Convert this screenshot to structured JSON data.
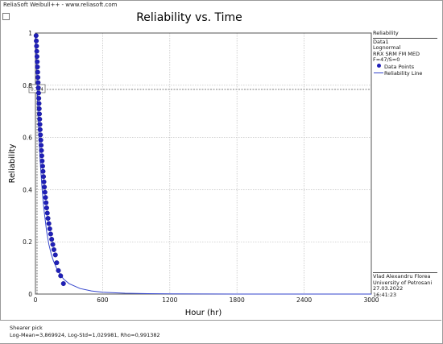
{
  "app": {
    "title": "ReliaSoft Weibull++ - www.reliasoft.com"
  },
  "legend": {
    "header": "Reliability",
    "lines": [
      "Data1",
      "Lognormal",
      "RRX SRM FM MED",
      "F=47/S=0"
    ],
    "items": [
      {
        "label": "Data Points",
        "symbol": "dot"
      },
      {
        "label": "Reliability Line",
        "symbol": "line"
      }
    ]
  },
  "author": {
    "name": "Vlad Alexandru Florea",
    "org": "University of Petrosani",
    "date": "27.03.2022",
    "time": "16:41:23"
  },
  "footer": {
    "title": "Shearer pick",
    "params": "Log-Mean=3,869924, Log-Std=1,029981, Rho=0,991382"
  },
  "colors": {
    "points": "#1f1fb8",
    "line": "#3344cc",
    "grid": "#bdbdbd",
    "ref": "#555555"
  },
  "chart_data": {
    "type": "scatter",
    "title": "Reliability vs. Time",
    "xlabel": "Hour (hr)",
    "ylabel": "Reliability",
    "xlim": [
      0,
      3000
    ],
    "ylim": [
      0,
      1
    ],
    "x_ticks": [
      "0",
      "600",
      "1200",
      "1800",
      "2400",
      "3000"
    ],
    "y_ticks": [
      "0",
      "0.2",
      "0.4",
      "0.6",
      "0.8",
      "1"
    ],
    "grid": true,
    "reference": {
      "y": 0.784,
      "label": "0.784"
    },
    "series": [
      {
        "name": "Data Points",
        "kind": "points",
        "x": [
          6,
          8,
          10,
          12,
          14,
          16,
          18,
          20,
          22,
          24,
          26,
          28,
          30,
          32,
          34,
          36,
          38,
          40,
          42,
          45,
          48,
          51,
          54,
          57,
          60,
          64,
          68,
          72,
          76,
          80,
          85,
          90,
          95,
          100,
          106,
          112,
          120,
          128,
          136,
          145,
          155,
          165,
          178,
          190,
          205,
          225,
          250
        ],
        "y": [
          0.99,
          0.97,
          0.95,
          0.93,
          0.91,
          0.89,
          0.87,
          0.85,
          0.83,
          0.81,
          0.79,
          0.77,
          0.75,
          0.73,
          0.71,
          0.69,
          0.67,
          0.65,
          0.63,
          0.61,
          0.59,
          0.57,
          0.55,
          0.53,
          0.51,
          0.49,
          0.47,
          0.45,
          0.43,
          0.41,
          0.39,
          0.37,
          0.35,
          0.33,
          0.31,
          0.29,
          0.27,
          0.25,
          0.23,
          0.21,
          0.19,
          0.17,
          0.15,
          0.12,
          0.09,
          0.07,
          0.04
        ]
      },
      {
        "name": "Reliability Line",
        "kind": "line",
        "x": [
          2,
          5,
          10,
          15,
          20,
          25,
          30,
          40,
          50,
          60,
          70,
          80,
          100,
          120,
          140,
          160,
          200,
          250,
          300,
          400,
          500,
          600,
          800,
          1000,
          1200,
          1500,
          1800,
          2100,
          2400,
          2700,
          3000
        ],
        "y": [
          0.998,
          0.965,
          0.88,
          0.8,
          0.73,
          0.67,
          0.62,
          0.53,
          0.46,
          0.4,
          0.35,
          0.31,
          0.24,
          0.19,
          0.155,
          0.128,
          0.088,
          0.058,
          0.04,
          0.021,
          0.012,
          0.007,
          0.003,
          0.0015,
          0.0008,
          0.0004,
          0.0002,
          0.0001,
          6e-05,
          4e-05,
          2e-05
        ]
      }
    ]
  }
}
